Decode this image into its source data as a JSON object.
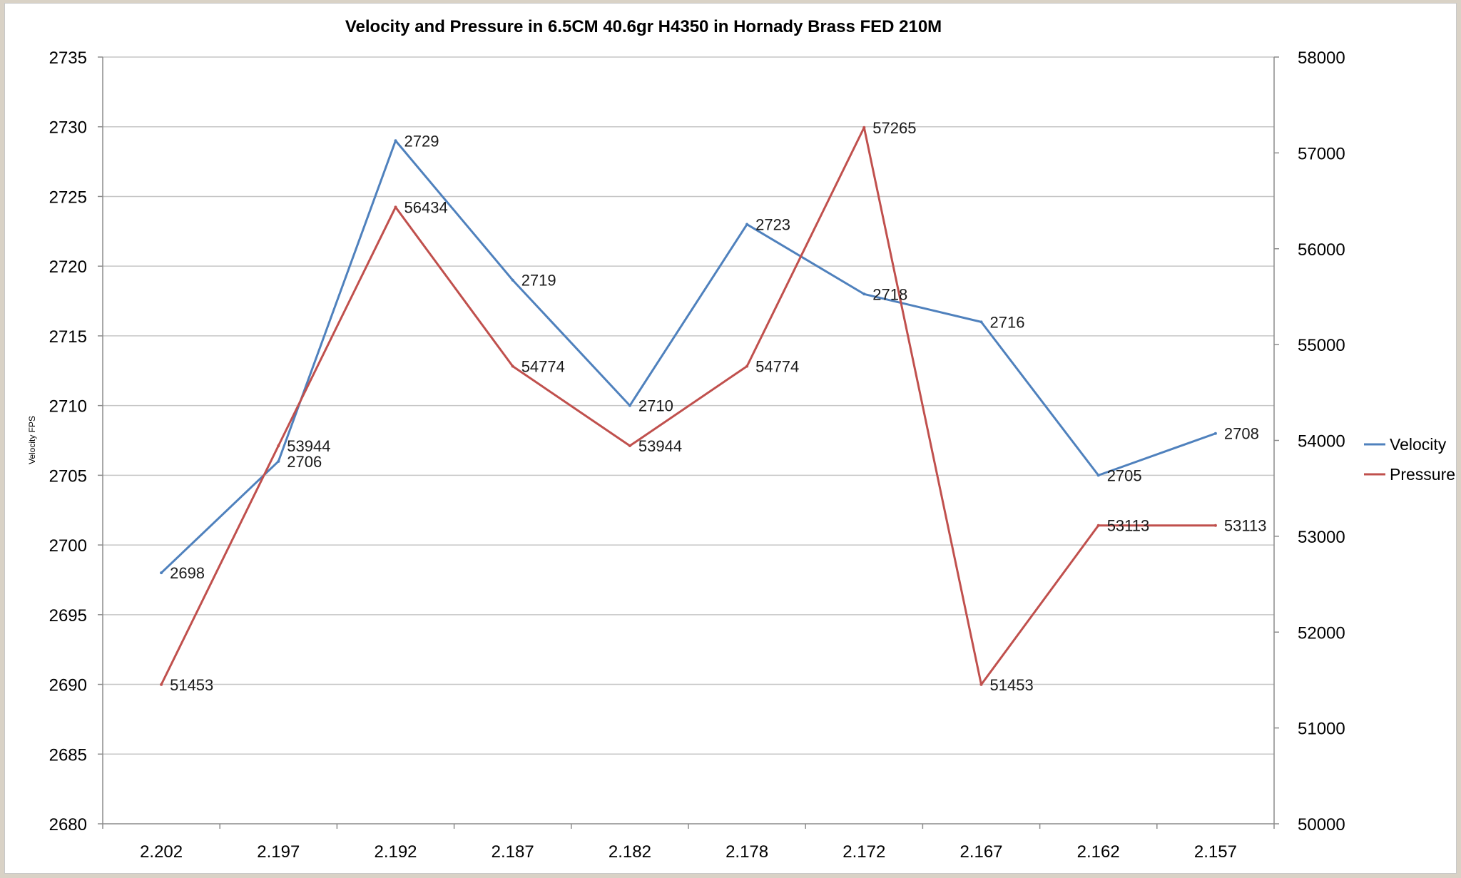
{
  "chart_data": {
    "type": "line",
    "title": "Velocity and Pressure in 6.5CM  40.6gr H4350 in Hornady Brass FED 210M",
    "xlabel": "",
    "ylabel": "Velocity FPS",
    "y2label": "",
    "categories": [
      "2.202",
      "2.197",
      "2.192",
      "2.187",
      "2.182",
      "2.178",
      "2.172",
      "2.167",
      "2.162",
      "2.157"
    ],
    "ylim": [
      2680,
      2735
    ],
    "y_ticks": [
      2680,
      2685,
      2690,
      2695,
      2700,
      2705,
      2710,
      2715,
      2720,
      2725,
      2730,
      2735
    ],
    "y2lim": [
      50000,
      58000
    ],
    "y2_ticks": [
      50000,
      51000,
      52000,
      53000,
      54000,
      55000,
      56000,
      57000,
      58000
    ],
    "grid": true,
    "legend_position": "right",
    "series": [
      {
        "name": "Velocity",
        "axis": "left",
        "color": "#4f81bd",
        "values": [
          2698,
          2706,
          2729,
          2719,
          2710,
          2723,
          2718,
          2716,
          2705,
          2708
        ]
      },
      {
        "name": "Pressure",
        "axis": "right",
        "color": "#c0504d",
        "values": [
          51453,
          53944,
          56434,
          54774,
          53944,
          54774,
          57265,
          51453,
          53113,
          53113
        ]
      }
    ]
  }
}
